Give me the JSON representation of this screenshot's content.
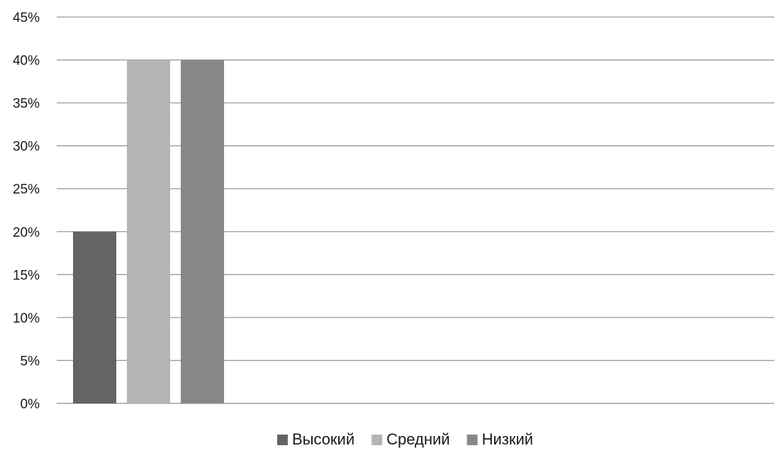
{
  "chart_data": {
    "type": "bar",
    "ylim": [
      0,
      0.45
    ],
    "ytick_step": 0.05,
    "y_format": "percent",
    "grid": true,
    "legend_position": "bottom",
    "xlabel": "",
    "ylabel": "",
    "title": "",
    "series": [
      {
        "name": "Высокий",
        "values": [
          0.2
        ],
        "color": "#646464"
      },
      {
        "name": "Средний",
        "values": [
          0.4
        ],
        "color": "#b4b4b4"
      },
      {
        "name": "Низкий",
        "values": [
          0.4
        ],
        "color": "#878787"
      }
    ]
  }
}
